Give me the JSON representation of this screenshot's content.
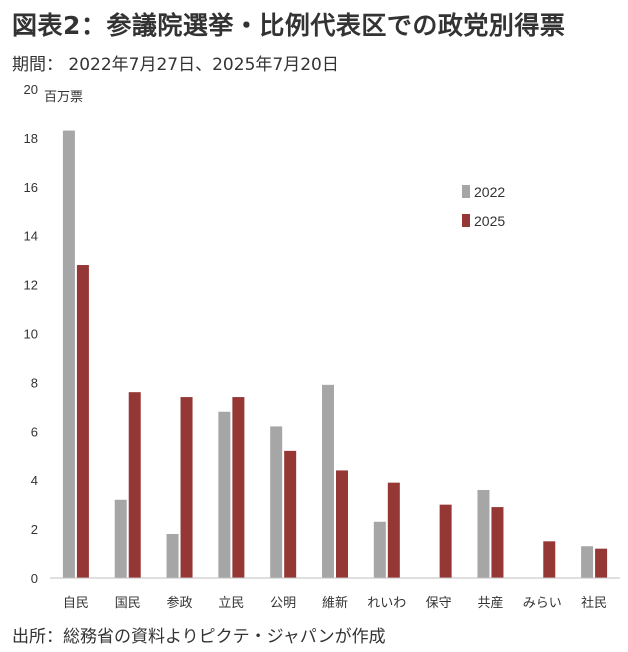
{
  "header": {
    "title": "図表2：参議院選挙・比例代表区での政党別得票",
    "subtitle": "期間： 2022年7月27日、2025年7月20日"
  },
  "footer": {
    "source": "出所：総務省の資料よりピクテ・ジャパンが作成"
  },
  "chart_data": {
    "type": "bar",
    "title": "図表2：参議院選挙・比例代表区での政党別得票",
    "ylabel": "百万票",
    "xlabel": "",
    "ylim": [
      0,
      20
    ],
    "yticks": [
      0,
      2,
      4,
      6,
      8,
      10,
      12,
      14,
      16,
      18,
      20
    ],
    "grid": false,
    "legend_position": "top-right",
    "categories": [
      "自民",
      "国民",
      "参政",
      "立民",
      "公明",
      "維新",
      "れいわ",
      "保守",
      "共産",
      "みらい",
      "社民"
    ],
    "series": [
      {
        "name": "2022",
        "color": "#a6a6a6",
        "values": [
          18.3,
          3.2,
          1.8,
          6.8,
          6.2,
          7.9,
          2.3,
          null,
          3.6,
          null,
          1.3
        ]
      },
      {
        "name": "2025",
        "color": "#953735",
        "values": [
          12.8,
          7.6,
          7.4,
          7.4,
          5.2,
          4.4,
          3.9,
          3.0,
          2.9,
          1.5,
          1.2
        ]
      }
    ]
  }
}
